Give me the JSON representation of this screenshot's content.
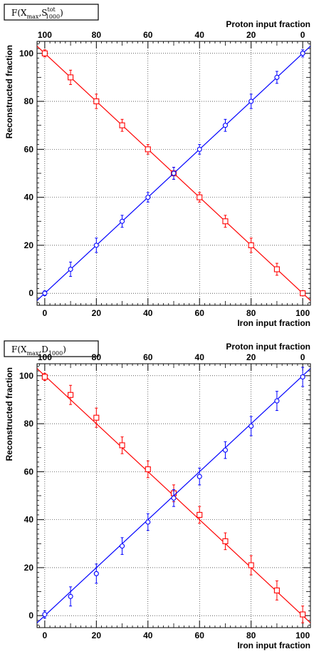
{
  "chart_data": [
    {
      "type": "scatter",
      "title": "F(X",
      "title_sub1": "max",
      "title_mid": ",S",
      "title_sup2": "tot",
      "title_sub2": "1000",
      "title_end": ")",
      "xlabel": "Iron input fraction",
      "x2label": "Proton input fraction",
      "ylabel": "Reconstructed fraction",
      "xlim": [
        -3,
        103
      ],
      "ylim": [
        -5,
        105
      ],
      "xticks": [
        "0",
        "20",
        "40",
        "60",
        "80",
        "100"
      ],
      "x2ticks": [
        "100",
        "80",
        "60",
        "40",
        "20",
        "0"
      ],
      "yticks": [
        "0",
        "20",
        "40",
        "60",
        "80",
        "100"
      ],
      "grid": true,
      "series": [
        {
          "color": "#ff0000",
          "marker": "square",
          "x": [
            0,
            10,
            20,
            30,
            40,
            50,
            60,
            70,
            80,
            90,
            100
          ],
          "y": [
            100,
            90,
            80,
            70,
            60,
            50,
            40,
            30,
            20,
            10,
            0
          ],
          "err": [
            1.5,
            3,
            3,
            2.5,
            2,
            2.5,
            2,
            2.5,
            3,
            2.5,
            1
          ],
          "fit": [
            [
              -3,
              103
            ],
            [
              103,
              -3
            ]
          ]
        },
        {
          "color": "#0000ff",
          "marker": "circle",
          "x": [
            0,
            10,
            20,
            30,
            40,
            50,
            60,
            70,
            80,
            90,
            100
          ],
          "y": [
            0,
            10,
            20,
            30,
            40,
            50,
            60,
            70,
            80,
            90,
            100
          ],
          "err": [
            1,
            3,
            3,
            2.5,
            2,
            2.5,
            2,
            2.5,
            3,
            2.5,
            1.5
          ],
          "fit": [
            [
              -3,
              -3
            ],
            [
              103,
              103
            ]
          ]
        }
      ]
    },
    {
      "type": "scatter",
      "title": "F(X",
      "title_sub1": "max",
      "title_mid": ",D",
      "title_sup2": "",
      "title_sub2": "1000",
      "title_end": ")",
      "xlabel": "Iron input fraction",
      "x2label": "Proton input fraction",
      "ylabel": "Reconstructed fraction",
      "xlim": [
        -3,
        103
      ],
      "ylim": [
        -5,
        105
      ],
      "xticks": [
        "0",
        "20",
        "40",
        "60",
        "80",
        "100"
      ],
      "x2ticks": [
        "100",
        "80",
        "60",
        "40",
        "20",
        "0"
      ],
      "yticks": [
        "0",
        "20",
        "40",
        "60",
        "80",
        "100"
      ],
      "grid": true,
      "series": [
        {
          "color": "#ff0000",
          "marker": "square",
          "x": [
            0,
            10,
            20,
            30,
            40,
            50,
            60,
            70,
            80,
            90,
            100
          ],
          "y": [
            99.5,
            92,
            82.5,
            71,
            61,
            51,
            42,
            31,
            21,
            10.5,
            0.5
          ],
          "err": [
            1.5,
            4,
            4,
            3.5,
            3.5,
            3.5,
            3.5,
            3.5,
            4,
            4,
            3.5
          ],
          "fit": [
            [
              -3,
              103
            ],
            [
              103,
              -3
            ]
          ]
        },
        {
          "color": "#0000ff",
          "marker": "circle",
          "x": [
            0,
            10,
            20,
            30,
            40,
            50,
            60,
            70,
            80,
            90,
            100
          ],
          "y": [
            0.5,
            8,
            17.5,
            29,
            39,
            49,
            58,
            69,
            79,
            89.5,
            99.5
          ],
          "err": [
            1.5,
            4,
            4,
            3.5,
            3.5,
            3.5,
            3.5,
            3.5,
            4,
            4,
            4
          ],
          "fit": [
            [
              -3,
              -3
            ],
            [
              103,
              103
            ]
          ]
        }
      ]
    }
  ]
}
